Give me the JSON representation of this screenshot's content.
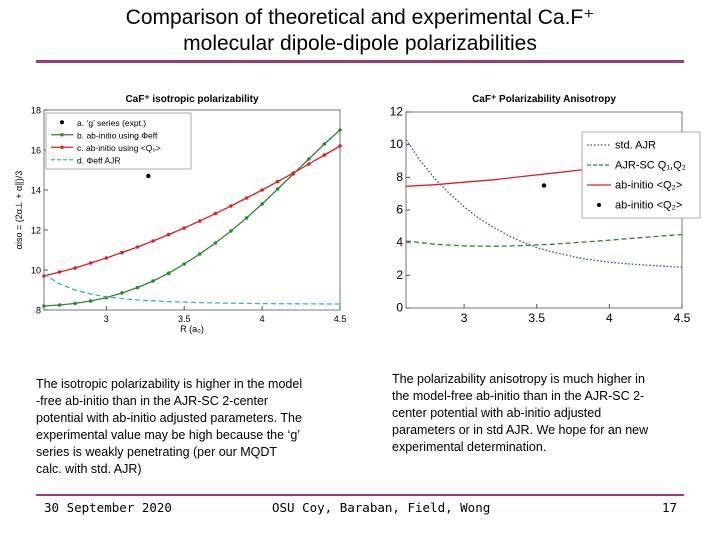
{
  "slide": {
    "title_line1": "Comparison of theoretical and experimental Ca.F⁺",
    "title_line2": "molecular dipole-dipole polarizabilities",
    "left_text": [
      "The isotropic polarizability is higher in the model",
      "-free ab-initio than in the AJR-SC 2-center",
      "potential with ab-initio adjusted parameters. The",
      "experimental value may be high because the ‘g’",
      "series is weakly penetrating (per our MQDT",
      "calc. with std. AJR)"
    ],
    "right_text": [
      "The polarizability anisotropy is much higher in",
      "the model-free ab-initio than in the AJR-SC 2-",
      "center potential with ab-initio adjusted",
      "parameters or in std AJR. We hope for an new",
      "experimental determination."
    ],
    "footer_date": "30 September 2020",
    "footer_authors": "OSU Coy, Baraban, Field, Wong",
    "footer_page": "17"
  },
  "chart_data": [
    {
      "type": "line",
      "title": "CaF⁺ isotropic polarizability",
      "xlabel": "R (a₀)",
      "ylabel": "αiso = (2α⊥ + α∥)/3",
      "xlim": [
        2.6,
        4.5
      ],
      "ylim": [
        8,
        18
      ],
      "xticks": [
        "3",
        "3.5",
        "4",
        "4.5"
      ],
      "yticks": [
        "8",
        "10",
        "12",
        "14",
        "16",
        "18"
      ],
      "series": [
        {
          "name": "a. ‘g’ series (expt.)",
          "color": "#000000",
          "style": "point",
          "x": [
            3.27
          ],
          "y": [
            14.7
          ]
        },
        {
          "name": "b. ab-initio using Φeff",
          "color": "#2a8a2a",
          "style": "line-dots",
          "x": [
            2.6,
            2.7,
            2.8,
            2.9,
            3.0,
            3.1,
            3.2,
            3.3,
            3.4,
            3.5,
            3.6,
            3.7,
            3.8,
            3.9,
            4.0,
            4.1,
            4.2,
            4.3,
            4.4,
            4.5
          ],
          "y": [
            8.2,
            8.25,
            8.33,
            8.45,
            8.62,
            8.85,
            9.12,
            9.45,
            9.84,
            10.3,
            10.8,
            11.35,
            11.95,
            12.6,
            13.3,
            14.05,
            14.8,
            15.55,
            16.3,
            17.0
          ]
        },
        {
          "name": "c. ab-initio using <Q₀>",
          "color": "#e02020",
          "style": "line-dots",
          "x": [
            2.6,
            2.7,
            2.8,
            2.9,
            3.0,
            3.1,
            3.2,
            3.3,
            3.4,
            3.5,
            3.6,
            3.7,
            3.8,
            3.9,
            4.0,
            4.1,
            4.2,
            4.3,
            4.4,
            4.5
          ],
          "y": [
            9.7,
            9.9,
            10.1,
            10.35,
            10.6,
            10.87,
            11.15,
            11.45,
            11.77,
            12.1,
            12.45,
            12.82,
            13.2,
            13.6,
            14.0,
            14.42,
            14.85,
            15.3,
            15.75,
            16.2
          ]
        },
        {
          "name": "d. Φeff AJR",
          "color": "#33b3d8",
          "style": "dashed",
          "x": [
            2.6,
            2.7,
            2.8,
            2.9,
            3.0,
            3.2,
            3.4,
            3.6,
            3.8,
            4.0,
            4.2,
            4.5
          ],
          "y": [
            9.8,
            9.3,
            9.0,
            8.8,
            8.65,
            8.5,
            8.42,
            8.37,
            8.34,
            8.32,
            8.31,
            8.3
          ]
        }
      ]
    },
    {
      "type": "line",
      "title": "CaF⁺ Polarizability Anisotropy",
      "xlabel": "",
      "ylabel": "",
      "xlim": [
        2.6,
        4.5
      ],
      "ylim": [
        0,
        12
      ],
      "xticks": [
        "3",
        "3.5",
        "4",
        "4.5"
      ],
      "yticks": [
        "0",
        "2",
        "4",
        "6",
        "8",
        "10",
        "12"
      ],
      "series": [
        {
          "name": "std. AJR",
          "color": "#3344cc",
          "style": "dotted",
          "x": [
            2.6,
            2.7,
            2.8,
            2.9,
            3.0,
            3.1,
            3.2,
            3.3,
            3.4,
            3.5,
            3.6,
            3.8,
            4.0,
            4.2,
            4.5
          ],
          "y": [
            10.3,
            9.0,
            7.9,
            7.0,
            6.2,
            5.5,
            4.95,
            4.45,
            4.05,
            3.7,
            3.45,
            3.05,
            2.8,
            2.65,
            2.5
          ]
        },
        {
          "name": "AJR-SC Q₁,Q₂",
          "color": "#2a8a2a",
          "style": "dashed",
          "x": [
            2.6,
            2.8,
            3.0,
            3.2,
            3.4,
            3.6,
            3.8,
            4.0,
            4.2,
            4.5
          ],
          "y": [
            4.1,
            3.9,
            3.8,
            3.78,
            3.82,
            3.9,
            4.02,
            4.15,
            4.3,
            4.5
          ]
        },
        {
          "name": "ab-initio <Q₂>",
          "color": "#e02020",
          "style": "line",
          "x": [
            2.6,
            2.8,
            3.0,
            3.2,
            3.4,
            3.6,
            3.8,
            4.0,
            4.2,
            4.5
          ],
          "y": [
            7.45,
            7.55,
            7.7,
            7.85,
            8.05,
            8.25,
            8.45,
            8.7,
            8.95,
            9.3
          ]
        },
        {
          "name": "ab-initio <Q₂>",
          "color": "#000000",
          "style": "point",
          "x": [
            3.55
          ],
          "y": [
            7.5
          ]
        }
      ]
    }
  ]
}
